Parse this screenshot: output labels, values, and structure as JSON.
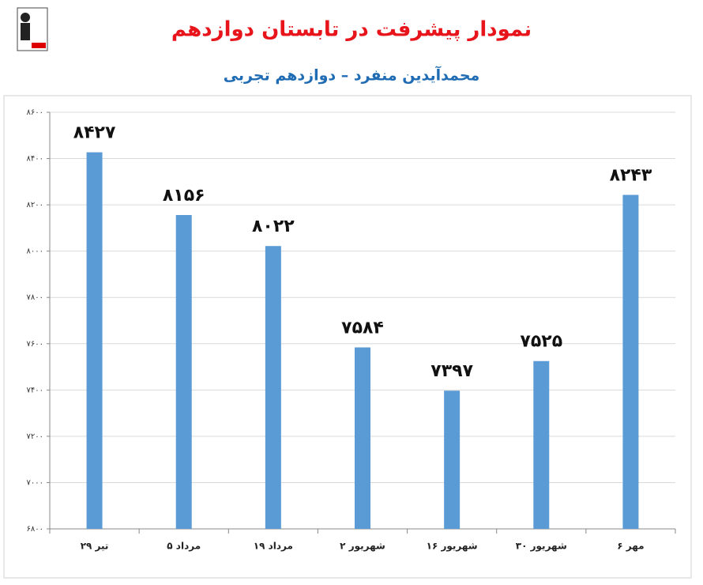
{
  "chart_data": {
    "type": "bar",
    "title": "نمودار پیشرفت در تابستان دوازدهم",
    "subtitle": "محمدآیدین منفرد – دوازدهم تجربی",
    "categories": [
      "۲۹ تیر",
      "۵ مرداد",
      "۱۹ مرداد",
      "۲ شهریور",
      "۱۶ شهریور",
      "۳۰ شهریور",
      "۶ مهر"
    ],
    "values": [
      8427,
      8156,
      8022,
      7584,
      7397,
      7525,
      8243
    ],
    "value_labels": [
      "۸۴۲۷",
      "۸۱۵۶",
      "۸۰۲۲",
      "۷۵۸۴",
      "۷۳۹۷",
      "۷۵۲۵",
      "۸۲۴۳"
    ],
    "color": "#5b9bd5",
    "ylim": [
      6800,
      8600
    ],
    "yticks": [
      {
        "value": 6800,
        "label": "۶۸۰۰"
      },
      {
        "value": 7000,
        "label": "۷۰۰۰"
      },
      {
        "value": 7200,
        "label": "۷۲۰۰"
      },
      {
        "value": 7400,
        "label": "۷۴۰۰"
      },
      {
        "value": 7600,
        "label": "۷۶۰۰"
      },
      {
        "value": 7800,
        "label": "۷۸۰۰"
      },
      {
        "value": 8000,
        "label": "۸۰۰۰"
      },
      {
        "value": 8200,
        "label": "۸۲۰۰"
      },
      {
        "value": 8400,
        "label": "۸۴۰۰"
      },
      {
        "value": 8600,
        "label": "۸۶۰۰"
      }
    ],
    "grid": true
  }
}
